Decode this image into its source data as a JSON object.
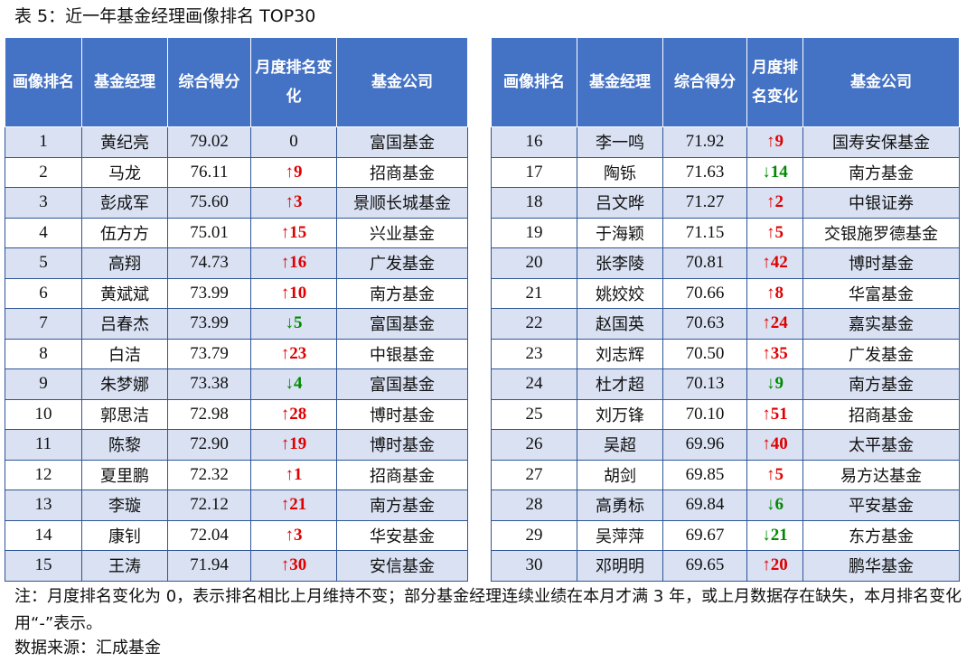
{
  "caption": "表 5：近一年基金经理画像排名 TOP30",
  "headers": {
    "left": [
      "画像排名",
      "基金经理",
      "综合得分",
      "月度排名变化",
      "基金公司"
    ],
    "right": [
      "画像排名",
      "基金经理",
      "综合得分",
      "月度排名变化",
      "基金公司"
    ]
  },
  "left_rows": [
    {
      "rank": "1",
      "manager": "黄纪亮",
      "score": "79.02",
      "change": "0",
      "dir": "same",
      "company": "富国基金"
    },
    {
      "rank": "2",
      "manager": "马龙",
      "score": "76.11",
      "change": "↑9",
      "dir": "up",
      "company": "招商基金"
    },
    {
      "rank": "3",
      "manager": "彭成军",
      "score": "75.60",
      "change": "↑3",
      "dir": "up",
      "company": "景顺长城基金"
    },
    {
      "rank": "4",
      "manager": "伍方方",
      "score": "75.01",
      "change": "↑15",
      "dir": "up",
      "company": "兴业基金"
    },
    {
      "rank": "5",
      "manager": "高翔",
      "score": "74.73",
      "change": "↑16",
      "dir": "up",
      "company": "广发基金"
    },
    {
      "rank": "6",
      "manager": "黄斌斌",
      "score": "73.99",
      "change": "↑10",
      "dir": "up",
      "company": "南方基金"
    },
    {
      "rank": "7",
      "manager": "吕春杰",
      "score": "73.99",
      "change": "↓5",
      "dir": "down",
      "company": "富国基金"
    },
    {
      "rank": "8",
      "manager": "白洁",
      "score": "73.79",
      "change": "↑23",
      "dir": "up",
      "company": "中银基金"
    },
    {
      "rank": "9",
      "manager": "朱梦娜",
      "score": "73.38",
      "change": "↓4",
      "dir": "down",
      "company": "富国基金"
    },
    {
      "rank": "10",
      "manager": "郭思洁",
      "score": "72.98",
      "change": "↑28",
      "dir": "up",
      "company": "博时基金"
    },
    {
      "rank": "11",
      "manager": "陈黎",
      "score": "72.90",
      "change": "↑19",
      "dir": "up",
      "company": "博时基金"
    },
    {
      "rank": "12",
      "manager": "夏里鹏",
      "score": "72.32",
      "change": "↑1",
      "dir": "up",
      "company": "招商基金"
    },
    {
      "rank": "13",
      "manager": "李璇",
      "score": "72.12",
      "change": "↑21",
      "dir": "up",
      "company": "南方基金"
    },
    {
      "rank": "14",
      "manager": "康钊",
      "score": "72.04",
      "change": "↑3",
      "dir": "up",
      "company": "华安基金"
    },
    {
      "rank": "15",
      "manager": "王涛",
      "score": "71.94",
      "change": "↑30",
      "dir": "up",
      "company": "安信基金"
    }
  ],
  "right_rows": [
    {
      "rank": "16",
      "manager": "李一鸣",
      "score": "71.92",
      "change": "↑9",
      "dir": "up",
      "company": "国寿安保基金"
    },
    {
      "rank": "17",
      "manager": "陶铄",
      "score": "71.63",
      "change": "↓14",
      "dir": "down",
      "company": "南方基金"
    },
    {
      "rank": "18",
      "manager": "吕文晔",
      "score": "71.27",
      "change": "↑2",
      "dir": "up",
      "company": "中银证券"
    },
    {
      "rank": "19",
      "manager": "于海颖",
      "score": "71.15",
      "change": "↑5",
      "dir": "up",
      "company": "交银施罗德基金"
    },
    {
      "rank": "20",
      "manager": "张李陵",
      "score": "70.81",
      "change": "↑42",
      "dir": "up",
      "company": "博时基金"
    },
    {
      "rank": "21",
      "manager": "姚姣姣",
      "score": "70.66",
      "change": "↑8",
      "dir": "up",
      "company": "华富基金"
    },
    {
      "rank": "22",
      "manager": "赵国英",
      "score": "70.63",
      "change": "↑24",
      "dir": "up",
      "company": "嘉实基金"
    },
    {
      "rank": "23",
      "manager": "刘志辉",
      "score": "70.50",
      "change": "↑35",
      "dir": "up",
      "company": "广发基金"
    },
    {
      "rank": "24",
      "manager": "杜才超",
      "score": "70.13",
      "change": "↓9",
      "dir": "down",
      "company": "南方基金"
    },
    {
      "rank": "25",
      "manager": "刘万锋",
      "score": "70.10",
      "change": "↑51",
      "dir": "up",
      "company": "招商基金"
    },
    {
      "rank": "26",
      "manager": "吴超",
      "score": "69.96",
      "change": "↑40",
      "dir": "up",
      "company": "太平基金"
    },
    {
      "rank": "27",
      "manager": "胡剑",
      "score": "69.85",
      "change": "↑5",
      "dir": "up",
      "company": "易方达基金"
    },
    {
      "rank": "28",
      "manager": "高勇标",
      "score": "69.84",
      "change": "↓6",
      "dir": "down",
      "company": "平安基金"
    },
    {
      "rank": "29",
      "manager": "吴萍萍",
      "score": "69.67",
      "change": "↓21",
      "dir": "down",
      "company": "东方基金"
    },
    {
      "rank": "30",
      "manager": "邓明明",
      "score": "69.65",
      "change": "↑20",
      "dir": "up",
      "company": "鹏华基金"
    }
  ],
  "note": "注：月度排名变化为 0，表示排名相比上月维持不变；部分基金经理连续业绩在本月才满 3 年，或上月数据存在缺失，本月排名变化用“-”表示。",
  "source": "数据来源：汇成基金",
  "colors": {
    "header_bg": "#4472c4",
    "row_alt": "#d9e1f2",
    "up": "#e00000",
    "down": "#008a00"
  }
}
